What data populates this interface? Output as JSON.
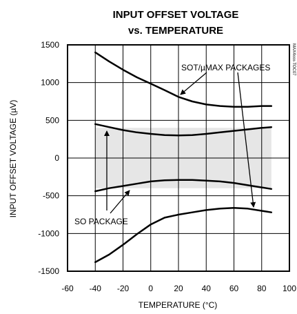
{
  "chart_data": {
    "type": "line",
    "title_line1": "INPUT OFFSET VOLTAGE",
    "title_line2": "vs. TEMPERATURE",
    "xlabel": "TEMPERATURE (°C)",
    "ylabel": "INPUT OFFSET VOLTAGE (µV)",
    "xlim": [
      -60,
      100
    ],
    "ylim": [
      -1500,
      1500
    ],
    "x_ticks": [
      -60,
      -40,
      -20,
      0,
      20,
      40,
      60,
      80,
      100
    ],
    "y_ticks": [
      1500,
      1000,
      500,
      0,
      -500,
      -1000,
      -1500
    ],
    "grid": true,
    "series": [
      {
        "name": "SOT/µMAX PACKAGES",
        "x": [
          -40,
          -30,
          -20,
          -10,
          0,
          10,
          20,
          30,
          40,
          50,
          60,
          70,
          80,
          87
        ],
        "values": [
          1400,
          1280,
          1170,
          1070,
          985,
          900,
          810,
          750,
          710,
          690,
          680,
          680,
          690,
          690
        ]
      },
      {
        "name": "SOT/µMAX PACKAGES",
        "x": [
          -40,
          -30,
          -20,
          -10,
          0,
          10,
          20,
          30,
          40,
          50,
          60,
          70,
          80,
          87
        ],
        "values": [
          -1380,
          -1280,
          -1150,
          -1010,
          -880,
          -790,
          -750,
          -720,
          -690,
          -670,
          -660,
          -670,
          -700,
          -720
        ]
      },
      {
        "name": "SO PACKAGE",
        "x": [
          -40,
          -30,
          -20,
          -10,
          0,
          10,
          20,
          30,
          40,
          50,
          60,
          70,
          80,
          87
        ],
        "values": [
          450,
          410,
          370,
          340,
          320,
          305,
          300,
          305,
          320,
          340,
          360,
          380,
          400,
          410
        ]
      },
      {
        "name": "SO PACKAGE",
        "x": [
          -40,
          -30,
          -20,
          -10,
          0,
          10,
          20,
          30,
          40,
          50,
          60,
          70,
          80,
          87
        ],
        "values": [
          -440,
          -400,
          -370,
          -340,
          -310,
          -295,
          -290,
          -290,
          -300,
          -310,
          -330,
          -360,
          -390,
          -410
        ]
      }
    ],
    "shaded_region": {
      "x": [
        -40,
        87
      ],
      "upper": 400,
      "lower": -400,
      "color": "#e6e6e6"
    },
    "annotations": [
      {
        "text": "SOT/µMAX PACKAGES"
      },
      {
        "text": "SO PACKAGE"
      }
    ],
    "side_note": "MAX4xxx-TOC07",
    "colors": {
      "line": "#000000",
      "grid": "#000000",
      "shade": "#e6e6e6"
    }
  }
}
